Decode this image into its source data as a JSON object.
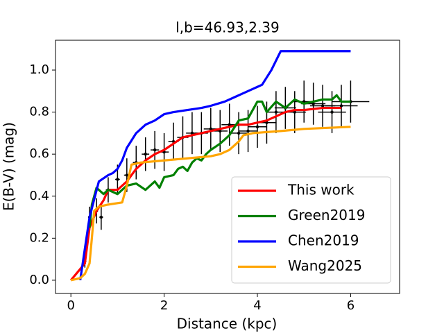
{
  "chart_data": {
    "type": "line",
    "title": "l,b=46.93,2.39",
    "x_label": "Distance (kpc)",
    "y_label": "E(B-V) (mag)",
    "xlim": [
      -0.33,
      7.05
    ],
    "ylim": [
      -0.063,
      1.142
    ],
    "xticks": [
      0,
      2,
      4,
      6
    ],
    "yticks": [
      {
        "value": 0,
        "label": "0.0"
      },
      0.2,
      0.4,
      0.6,
      0.8,
      {
        "value": 1,
        "label": "1.0"
      }
    ],
    "legend": "lower right",
    "series": [
      {
        "style": "errorbar",
        "color": "#000000",
        "x": [
          0.3,
          0.4,
          0.55,
          0.65,
          0.8,
          1.0,
          1.2,
          1.4,
          1.6,
          1.8,
          2.0,
          2.2,
          2.4,
          2.6,
          2.8,
          3.0,
          3.2,
          3.4,
          3.6,
          3.8,
          4.0,
          4.2,
          4.4,
          4.6,
          4.8,
          5.0,
          5.2,
          5.4,
          5.6,
          5.8,
          6.0
        ],
        "values": [
          0.09,
          0.3,
          0.33,
          0.3,
          0.43,
          0.48,
          0.5,
          0.56,
          0.6,
          0.62,
          0.61,
          0.66,
          0.68,
          0.7,
          0.7,
          0.72,
          0.71,
          0.74,
          0.7,
          0.71,
          0.73,
          0.75,
          0.8,
          0.82,
          0.8,
          0.85,
          0.84,
          0.83,
          0.8,
          0.83,
          0.85
        ],
        "xerr": [
          0.02,
          0.03,
          0.03,
          0.04,
          0.05,
          0.05,
          0.06,
          0.07,
          0.08,
          0.09,
          0.1,
          0.11,
          0.12,
          0.13,
          0.14,
          0.15,
          0.16,
          0.17,
          0.18,
          0.19,
          0.2,
          0.21,
          0.22,
          0.23,
          0.24,
          0.25,
          0.26,
          0.27,
          0.3,
          0.35,
          0.4
        ],
        "yerr": [
          0.03,
          0.05,
          0.06,
          0.06,
          0.06,
          0.07,
          0.08,
          0.08,
          0.08,
          0.09,
          0.09,
          0.09,
          0.1,
          0.1,
          0.1,
          0.1,
          0.1,
          0.1,
          0.1,
          0.1,
          0.1,
          0.1,
          0.1,
          0.1,
          0.1,
          0.1,
          0.1,
          0.1,
          0.1,
          0.1,
          0.1
        ]
      },
      {
        "name": "This work",
        "color": "#ff0000",
        "x": [
          0,
          0.3,
          0.4,
          0.55,
          0.7,
          0.8,
          1.0,
          1.2,
          1.4,
          1.6,
          1.8,
          2.0,
          2.2,
          2.4,
          2.6,
          2.8,
          3.0,
          3.2,
          3.4,
          3.6,
          3.8,
          4.0,
          4.2,
          4.4,
          4.6,
          4.8,
          5.0,
          5.4,
          5.8
        ],
        "values": [
          0,
          0.08,
          0.25,
          0.33,
          0.38,
          0.43,
          0.43,
          0.47,
          0.53,
          0.57,
          0.6,
          0.62,
          0.65,
          0.68,
          0.69,
          0.7,
          0.71,
          0.72,
          0.73,
          0.74,
          0.74,
          0.75,
          0.76,
          0.78,
          0.8,
          0.81,
          0.81,
          0.82,
          0.82
        ]
      },
      {
        "name": "Green2019",
        "color": "#008000",
        "x": [
          0.4,
          0.45,
          0.55,
          0.7,
          0.8,
          1.0,
          1.2,
          1.4,
          1.6,
          1.8,
          1.9,
          2.0,
          2.2,
          2.3,
          2.4,
          2.5,
          2.6,
          2.7,
          2.8,
          2.9,
          3.0,
          3.2,
          3.4,
          3.6,
          3.8,
          4.0,
          4.1,
          4.2,
          4.4,
          4.6,
          4.8,
          5.0,
          5.2,
          5.4,
          5.6,
          5.7,
          5.8,
          6.0
        ],
        "values": [
          0.25,
          0.36,
          0.44,
          0.41,
          0.43,
          0.41,
          0.45,
          0.46,
          0.43,
          0.47,
          0.44,
          0.49,
          0.5,
          0.53,
          0.54,
          0.52,
          0.56,
          0.58,
          0.57,
          0.6,
          0.62,
          0.65,
          0.69,
          0.76,
          0.77,
          0.85,
          0.85,
          0.8,
          0.85,
          0.82,
          0.86,
          0.84,
          0.85,
          0.86,
          0.86,
          0.88,
          0.85,
          0.85
        ]
      },
      {
        "name": "Chen2019",
        "color": "#0000ff",
        "x": [
          0.2,
          0.3,
          0.4,
          0.6,
          0.8,
          0.9,
          1.0,
          1.1,
          1.2,
          1.4,
          1.6,
          1.8,
          2.0,
          2.2,
          2.5,
          2.8,
          3.0,
          3.3,
          3.5,
          3.7,
          4.0,
          4.1,
          4.3,
          4.5,
          6.0
        ],
        "values": [
          0,
          0.15,
          0.3,
          0.47,
          0.5,
          0.51,
          0.53,
          0.57,
          0.63,
          0.7,
          0.74,
          0.76,
          0.79,
          0.8,
          0.81,
          0.82,
          0.83,
          0.85,
          0.87,
          0.89,
          0.92,
          0.93,
          1.0,
          1.09,
          1.09
        ]
      },
      {
        "name": "Wang2025",
        "color": "#ffa500",
        "x": [
          0,
          0.2,
          0.3,
          0.4,
          0.45,
          0.5,
          0.6,
          0.8,
          1.1,
          1.2,
          1.3,
          1.5,
          2.0,
          2.5,
          3.0,
          3.2,
          3.4,
          3.6,
          3.7,
          3.9,
          4.5,
          5.0,
          6.0
        ],
        "values": [
          0,
          0.01,
          0.03,
          0.08,
          0.2,
          0.33,
          0.35,
          0.36,
          0.37,
          0.45,
          0.55,
          0.56,
          0.57,
          0.58,
          0.59,
          0.6,
          0.62,
          0.66,
          0.69,
          0.7,
          0.71,
          0.72,
          0.73
        ]
      }
    ]
  }
}
